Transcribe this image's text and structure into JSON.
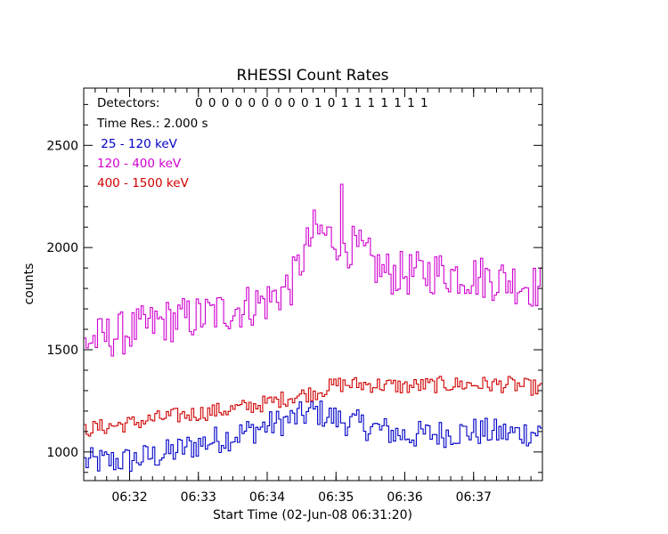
{
  "colors": {
    "background": "#ffffff",
    "axes": "#000000",
    "band_25_120": "#0000c8",
    "band_120_400": "#d000d0",
    "band_400_1500": "#d00000"
  },
  "chart_data": {
    "type": "line",
    "style": "step",
    "title": "RHESSI Count Rates",
    "xlabel": "Start Time (02-Jun-08 06:31:20)",
    "ylabel": "counts",
    "xlim": [
      "06:31:20",
      "06:38:00"
    ],
    "ylim": [
      860,
      2780
    ],
    "x_ticks": [
      "06:32",
      "06:33",
      "06:34",
      "06:35",
      "06:36",
      "06:37"
    ],
    "y_ticks": [
      1000,
      1500,
      2000,
      2500
    ],
    "time_resolution_s": 2.0,
    "grid": false,
    "legend_placement": "top-left",
    "annotations": {
      "detectors_label": "Detectors:",
      "detectors_value": "0 0 0 0 0 0 0 0 0 1 0 1 1 1 1 1 1 1",
      "time_res": "Time Res.: 2.000 s",
      "legend": [
        " 25 - 120 keV",
        "120 - 400 keV",
        "400 - 1500 keV"
      ]
    },
    "series": [
      {
        "name": "25 - 120 keV",
        "x": [
          "06:31:20",
          "06:32:00",
          "06:32:30",
          "06:33:00",
          "06:33:30",
          "06:34:00",
          "06:34:20",
          "06:34:40",
          "06:35:00",
          "06:35:30",
          "06:36:00",
          "06:36:30",
          "06:37:00",
          "06:37:30",
          "06:38:00"
        ],
        "values": [
          950,
          960,
          990,
          1040,
          1080,
          1130,
          1160,
          1200,
          1160,
          1120,
          1080,
          1090,
          1100,
          1090,
          1100
        ]
      },
      {
        "name": "120 - 400 keV",
        "x": [
          "06:31:20",
          "06:32:00",
          "06:32:30",
          "06:33:00",
          "06:33:30",
          "06:34:00",
          "06:34:20",
          "06:34:40",
          "06:35:00",
          "06:35:20",
          "06:35:40",
          "06:36:00",
          "06:36:30",
          "06:37:00",
          "06:37:30",
          "06:38:00"
        ],
        "values": [
          1540,
          1590,
          1640,
          1660,
          1700,
          1740,
          1820,
          2080,
          2040,
          1980,
          1880,
          1870,
          1880,
          1860,
          1840,
          1800
        ]
      },
      {
        "name": "400 - 1500 keV",
        "x": [
          "06:31:20",
          "06:32:00",
          "06:32:30",
          "06:33:00",
          "06:33:30",
          "06:34:00",
          "06:34:20",
          "06:34:40",
          "06:35:00",
          "06:35:30",
          "06:36:00",
          "06:36:30",
          "06:37:00",
          "06:37:30",
          "06:38:00"
        ],
        "values": [
          1110,
          1140,
          1170,
          1190,
          1210,
          1240,
          1270,
          1290,
          1330,
          1330,
          1320,
          1330,
          1330,
          1330,
          1310
        ]
      }
    ]
  }
}
